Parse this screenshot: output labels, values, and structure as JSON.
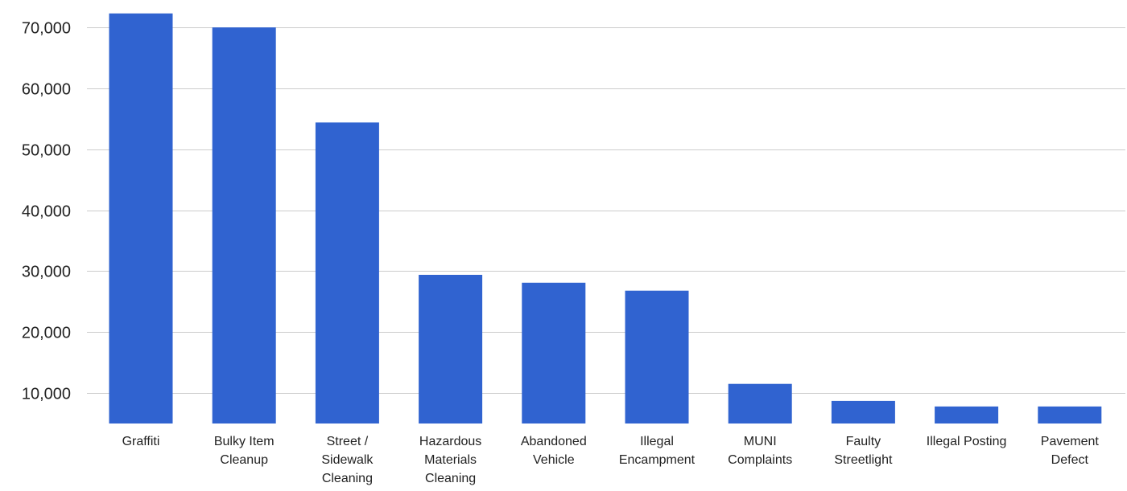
{
  "chart_data": {
    "type": "bar",
    "title": "",
    "xlabel": "",
    "ylabel": "",
    "categories": [
      "Graffiti",
      "Bulky Item Cleanup",
      "Street / Sidewalk Cleaning",
      "Hazardous Materials Cleaning",
      "Abandoned Vehicle",
      "Illegal Encampment",
      "MUNI Complaints",
      "Faulty Streetlight",
      "Illegal Posting",
      "Pavement Defect"
    ],
    "category_lines": [
      [
        "Graffiti"
      ],
      [
        "Bulky Item",
        "Cleanup"
      ],
      [
        "Street /",
        "Sidewalk",
        "Cleaning"
      ],
      [
        "Hazardous",
        "Materials",
        "Cleaning"
      ],
      [
        "Abandoned",
        "Vehicle"
      ],
      [
        "Illegal",
        "Encampment"
      ],
      [
        "MUNI",
        "Complaints"
      ],
      [
        "Faulty",
        "Streetlight"
      ],
      [
        "Illegal Posting"
      ],
      [
        "Pavement",
        "Defect"
      ]
    ],
    "values": [
      72300,
      70000,
      54400,
      29400,
      28100,
      26800,
      11500,
      8700,
      7800,
      7800
    ],
    "ylim": [
      5000,
      74500
    ],
    "yticks": [
      10000,
      20000,
      30000,
      40000,
      50000,
      60000,
      70000
    ],
    "ytick_labels": [
      "10,000",
      "20,000",
      "30,000",
      "40,000",
      "50,000",
      "60,000",
      "70,000"
    ],
    "grid": true,
    "legend": "none",
    "colors": {
      "bar": "#3063d0",
      "grid": "#cccccc",
      "text": "#222222"
    }
  }
}
